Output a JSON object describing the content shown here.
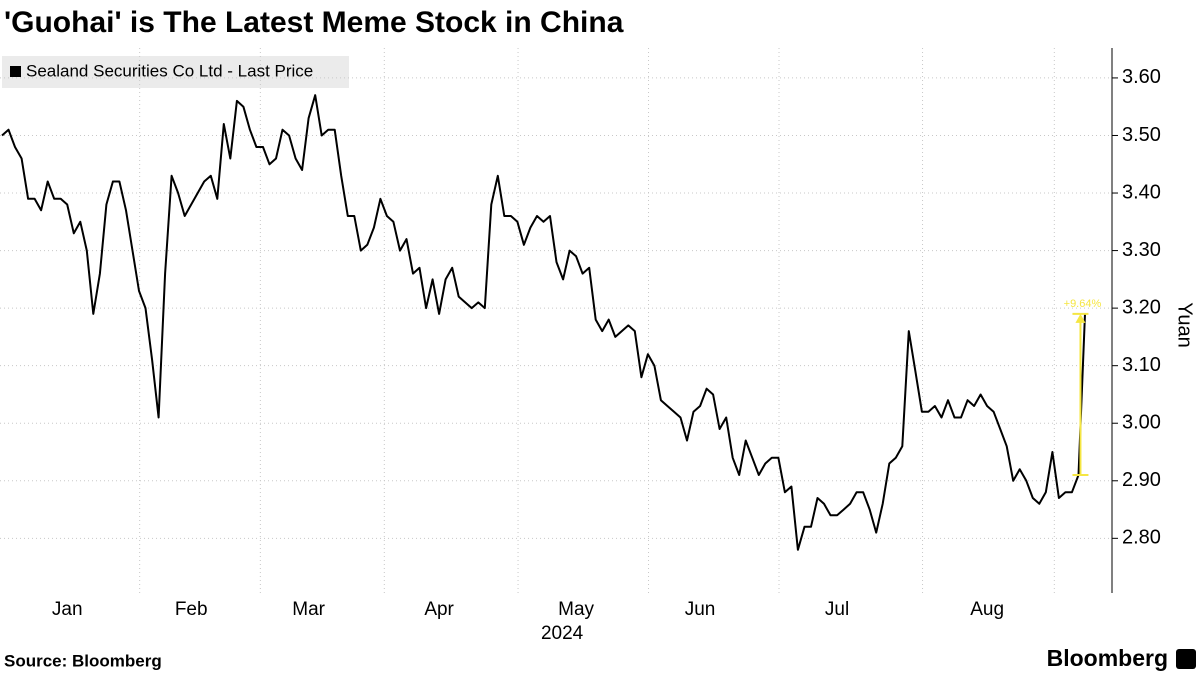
{
  "chart_data": {
    "type": "line",
    "title": "'Guohai' is The Latest Meme Stock in China",
    "ylabel": "Yuan",
    "xlabel": "2024",
    "source": "Source: Bloomberg",
    "brand": "Bloomberg",
    "legend": "top-left",
    "grid": true,
    "ylim": [
      2.705,
      3.652
    ],
    "yticks": [
      {
        "value": 2.8,
        "label": "2.80"
      },
      {
        "value": 2.9,
        "label": "2.90"
      },
      {
        "value": 3.0,
        "label": "3.00"
      },
      {
        "value": 3.1,
        "label": "3.10"
      },
      {
        "value": 3.2,
        "label": "3.20"
      },
      {
        "value": 3.3,
        "label": "3.30"
      },
      {
        "value": 3.4,
        "label": "3.40"
      },
      {
        "value": 3.5,
        "label": "3.50"
      },
      {
        "value": 3.6,
        "label": "3.60"
      }
    ],
    "xticks": [
      {
        "value": 10,
        "label": "Jan"
      },
      {
        "value": 29,
        "label": "Feb"
      },
      {
        "value": 47,
        "label": "Mar"
      },
      {
        "value": 67,
        "label": "Apr"
      },
      {
        "value": 88,
        "label": "May"
      },
      {
        "value": 107,
        "label": "Jun"
      },
      {
        "value": 128,
        "label": "Jul"
      },
      {
        "value": 151,
        "label": "Aug"
      }
    ],
    "series": [
      {
        "name": "Sealand Securities Co Ltd - Last Price",
        "color": "#000000",
        "values": [
          3.5,
          3.51,
          3.48,
          3.46,
          3.39,
          3.39,
          3.37,
          3.42,
          3.39,
          3.39,
          3.38,
          3.33,
          3.35,
          3.3,
          3.19,
          3.26,
          3.38,
          3.42,
          3.42,
          3.37,
          3.3,
          3.23,
          3.2,
          3.11,
          3.01,
          3.26,
          3.43,
          3.4,
          3.36,
          3.38,
          3.4,
          3.42,
          3.43,
          3.39,
          3.52,
          3.46,
          3.56,
          3.55,
          3.51,
          3.48,
          3.48,
          3.45,
          3.46,
          3.51,
          3.5,
          3.46,
          3.44,
          3.53,
          3.57,
          3.5,
          3.51,
          3.51,
          3.43,
          3.36,
          3.36,
          3.3,
          3.31,
          3.34,
          3.39,
          3.36,
          3.35,
          3.3,
          3.32,
          3.26,
          3.27,
          3.2,
          3.25,
          3.19,
          3.25,
          3.27,
          3.22,
          3.21,
          3.2,
          3.21,
          3.2,
          3.38,
          3.43,
          3.36,
          3.36,
          3.35,
          3.31,
          3.34,
          3.36,
          3.35,
          3.36,
          3.28,
          3.25,
          3.3,
          3.29,
          3.26,
          3.27,
          3.18,
          3.16,
          3.18,
          3.15,
          3.16,
          3.17,
          3.16,
          3.08,
          3.12,
          3.1,
          3.04,
          3.03,
          3.02,
          3.01,
          2.97,
          3.02,
          3.03,
          3.06,
          3.05,
          2.99,
          3.01,
          2.94,
          2.91,
          2.97,
          2.94,
          2.91,
          2.93,
          2.94,
          2.94,
          2.88,
          2.89,
          2.78,
          2.82,
          2.82,
          2.87,
          2.86,
          2.84,
          2.84,
          2.85,
          2.86,
          2.88,
          2.88,
          2.85,
          2.81,
          2.86,
          2.93,
          2.94,
          2.96,
          3.16,
          3.09,
          3.02,
          3.02,
          3.03,
          3.01,
          3.04,
          3.01,
          3.01,
          3.04,
          3.03,
          3.05,
          3.03,
          3.02,
          2.99,
          2.96,
          2.9,
          2.92,
          2.9,
          2.87,
          2.86,
          2.88,
          2.95,
          2.87,
          2.88,
          2.88,
          2.91,
          3.19
        ]
      }
    ],
    "annotation": {
      "label": "+9.64%",
      "color": "#f5e642",
      "from": 2.91,
      "to": 3.19
    }
  }
}
